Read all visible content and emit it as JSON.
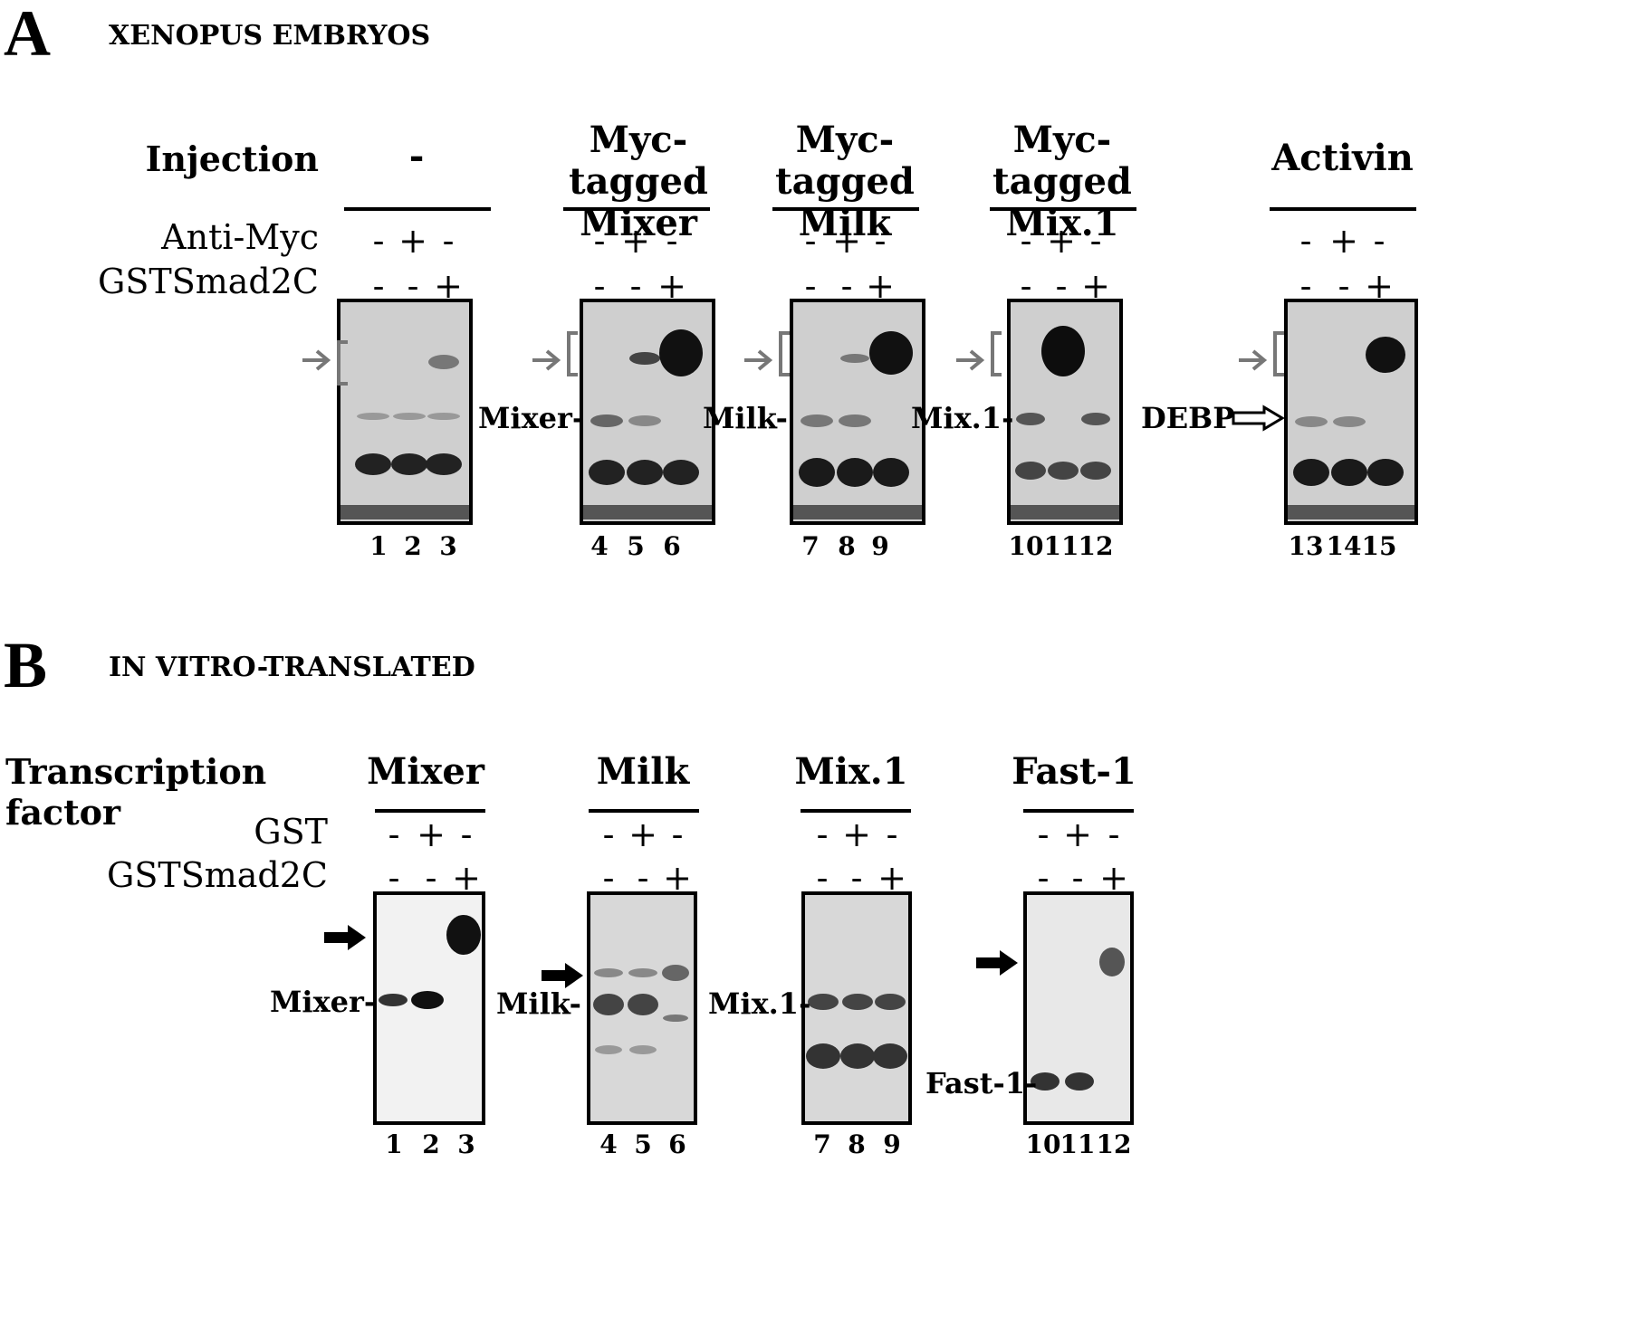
{
  "panelA": {
    "letter": "A",
    "title": "XENOPUS EMBRYOS",
    "row_labels": {
      "injection": "Injection",
      "anti_myc": "Anti-Myc",
      "gstsmad": "GSTSmad2C"
    },
    "groups": [
      {
        "header": [
          "-",
          ""
        ],
        "anti_myc": [
          "-",
          "+",
          "-"
        ],
        "gstsmad": [
          "-",
          "-",
          "+"
        ],
        "lanes": [
          "1",
          "2",
          "3"
        ],
        "band_label": ""
      },
      {
        "header": [
          "Myc-tagged",
          "Mixer"
        ],
        "anti_myc": [
          "-",
          "+",
          "-"
        ],
        "gstsmad": [
          "-",
          "-",
          "+"
        ],
        "lanes": [
          "4",
          "5",
          "6"
        ],
        "band_label": "Mixer-"
      },
      {
        "header": [
          "Myc-tagged",
          "Milk"
        ],
        "anti_myc": [
          "-",
          "+",
          "-"
        ],
        "gstsmad": [
          "-",
          "-",
          "+"
        ],
        "lanes": [
          "7",
          "8",
          "9"
        ],
        "band_label": "Milk-"
      },
      {
        "header": [
          "Myc-tagged",
          "Mix.1"
        ],
        "anti_myc": [
          "-",
          "+",
          "-"
        ],
        "gstsmad": [
          "-",
          "-",
          "+"
        ],
        "lanes": [
          "10",
          "11",
          "12"
        ],
        "band_label": "Mix.1-"
      },
      {
        "header": [
          "Activin",
          ""
        ],
        "anti_myc": [
          "-",
          "+",
          "-"
        ],
        "gstsmad": [
          "-",
          "-",
          "+"
        ],
        "lanes": [
          "13",
          "14",
          "15"
        ],
        "band_label": "DEBP"
      }
    ]
  },
  "panelB": {
    "letter": "B",
    "title": "IN VITRO-TRANSLATED",
    "row_labels": {
      "tf": "Transcription factor",
      "gst": "GST",
      "gstsmad": "GSTSmad2C"
    },
    "groups": [
      {
        "header": "Mixer",
        "gst": [
          "-",
          "+",
          "-"
        ],
        "gstsmad": [
          "-",
          "-",
          "+"
        ],
        "lanes": [
          "1",
          "2",
          "3"
        ],
        "band_label": "Mixer-"
      },
      {
        "header": "Milk",
        "gst": [
          "-",
          "+",
          "-"
        ],
        "gstsmad": [
          "-",
          "-",
          "+"
        ],
        "lanes": [
          "4",
          "5",
          "6"
        ],
        "band_label": "Milk-"
      },
      {
        "header": "Mix.1",
        "gst": [
          "-",
          "+",
          "-"
        ],
        "gstsmad": [
          "-",
          "-",
          "+"
        ],
        "lanes": [
          "7",
          "8",
          "9"
        ],
        "band_label": "Mix.1-"
      },
      {
        "header": "Fast-1",
        "gst": [
          "-",
          "+",
          "-"
        ],
        "gstsmad": [
          "-",
          "-",
          "+"
        ],
        "lanes": [
          "10",
          "11",
          "12"
        ],
        "band_label": "Fast-1-"
      }
    ]
  }
}
